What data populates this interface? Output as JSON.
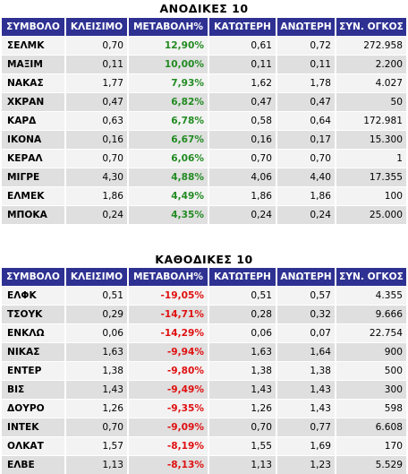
{
  "gainers": {
    "title": "ΑΝΟΔΙΚΕΣ 10",
    "headers": [
      "ΣΥΜΒΟΛΟ",
      "ΚΛΕΙΣΙΜΟ",
      "ΜΕΤΑΒΟΛΗ%",
      "ΚΑΤΩΤΕΡΗ",
      "ΑΝΩΤΕΡΗ",
      "ΣΥΝ. ΟΓΚΟΣ"
    ],
    "change_color": "#228b22",
    "rows": [
      [
        "ΣΕΛΜΚ",
        "0,70",
        "12,90%",
        "0,61",
        "0,72",
        "272.958"
      ],
      [
        "ΜΑΞΙΜ",
        "0,11",
        "10,00%",
        "0,11",
        "0,11",
        "2.200"
      ],
      [
        "ΝΑΚΑΣ",
        "1,77",
        "7,93%",
        "1,62",
        "1,78",
        "4.027"
      ],
      [
        "ΧΚΡΑΝ",
        "0,47",
        "6,82%",
        "0,47",
        "0,47",
        "50"
      ],
      [
        "ΚΑΡΔ",
        "0,63",
        "6,78%",
        "0,58",
        "0,64",
        "172.981"
      ],
      [
        "ΙΚΟΝΑ",
        "0,16",
        "6,67%",
        "0,16",
        "0,17",
        "15.300"
      ],
      [
        "ΚΕΡΑΛ",
        "0,70",
        "6,06%",
        "0,70",
        "0,70",
        "1"
      ],
      [
        "ΜΙΓΡΕ",
        "4,30",
        "4,88%",
        "4,06",
        "4,40",
        "17.355"
      ],
      [
        "ΕΛΜΕΚ",
        "1,86",
        "4,49%",
        "1,86",
        "1,86",
        "100"
      ],
      [
        "ΜΠΟΚΑ",
        "0,24",
        "4,35%",
        "0,24",
        "0,24",
        "25.000"
      ]
    ]
  },
  "losers": {
    "title": "ΚΑΘΟΔΙΚΕΣ 10",
    "headers": [
      "ΣΥΜΒΟΛΟ",
      "ΚΛΕΙΣΙΜΟ",
      "ΜΕΤΑΒΟΛΗ%",
      "ΚΑΤΩΤΕΡΗ",
      "ΑΝΩΤΕΡΗ",
      "ΣΥΝ. ΟΓΚΟΣ"
    ],
    "change_color": "#e01010",
    "rows": [
      [
        "ΕΛΦΚ",
        "0,51",
        "-19,05%",
        "0,51",
        "0,57",
        "4.355"
      ],
      [
        "ΤΣΟΥΚ",
        "0,29",
        "-14,71%",
        "0,28",
        "0,32",
        "9.666"
      ],
      [
        "ΕΝΚΛΩ",
        "0,06",
        "-14,29%",
        "0,06",
        "0,07",
        "22.754"
      ],
      [
        "ΝΙΚΑΣ",
        "1,63",
        "-9,94%",
        "1,63",
        "1,64",
        "900"
      ],
      [
        "ΕΝΤΕΡ",
        "1,38",
        "-9,80%",
        "1,38",
        "1,38",
        "500"
      ],
      [
        "ΒΙΣ",
        "1,43",
        "-9,49%",
        "1,43",
        "1,43",
        "300"
      ],
      [
        "ΔΟΥΡΟ",
        "1,26",
        "-9,35%",
        "1,26",
        "1,43",
        "598"
      ],
      [
        "ΙΝΤΕΚ",
        "0,70",
        "-9,09%",
        "0,70",
        "0,77",
        "6.608"
      ],
      [
        "ΟΛΚΑΤ",
        "1,57",
        "-8,19%",
        "1,55",
        "1,69",
        "170"
      ],
      [
        "ΕΛΒΕ",
        "1,13",
        "-8,13%",
        "1,13",
        "1,23",
        "5.529"
      ]
    ]
  }
}
